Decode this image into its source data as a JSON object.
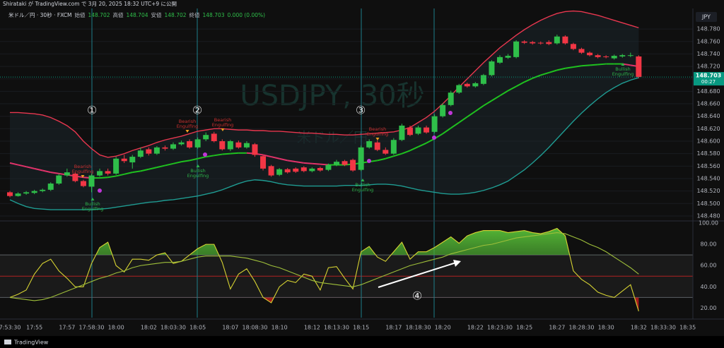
{
  "header": {
    "publisher": "Shirataki が TradingView.com で 3月 20, 2025 18:32 UTC+9 に公開",
    "footer": "TradingView"
  },
  "chart_data": [
    {
      "type": "candlestick",
      "title": "米ドル／円 · 30秒 · FXCM",
      "ohlc": [
        {
          "label": "始値",
          "value": 148.702
        },
        {
          "label": "高値",
          "value": 148.704
        },
        {
          "label": "安値",
          "value": 148.702
        },
        {
          "label": "終値",
          "value": 148.703
        }
      ],
      "change": "0.000 (0.00%)",
      "watermark": [
        "USDJPY, 30秒",
        "米ドル／円"
      ],
      "currency": "JPY",
      "last": {
        "value": 148.703,
        "countdown": "00:27"
      },
      "categories": [
        "7:53:30",
        null,
        null,
        "17:55",
        null,
        null,
        null,
        "17:57",
        null,
        null,
        "17:58:30",
        null,
        null,
        "18:00",
        null,
        null,
        null,
        "18:02",
        null,
        null,
        "18:03:30",
        null,
        null,
        "18:05",
        null,
        null,
        null,
        "18:07",
        null,
        null,
        "18:08:30",
        null,
        null,
        "18:10",
        null,
        null,
        null,
        "18:12",
        null,
        null,
        "18:13:30",
        null,
        null,
        "18:15",
        null,
        null,
        null,
        "18:17",
        null,
        null,
        "18:18:30",
        null,
        null,
        "18:20",
        null,
        null,
        null,
        "18:22",
        null,
        null,
        "18:23:30",
        null,
        null,
        "18:25",
        null,
        null,
        null,
        "18:27",
        null,
        null,
        "18:28:30",
        null,
        null,
        "18:30",
        null,
        null,
        null,
        "18:32",
        null,
        null,
        "18:33:30",
        null,
        null,
        "18:35"
      ],
      "open": [
        148.518,
        148.512,
        148.516,
        148.517,
        148.52,
        148.522,
        148.532,
        148.545,
        148.548,
        148.536,
        148.527,
        148.545,
        148.552,
        148.548,
        148.572,
        148.566,
        148.575,
        148.587,
        148.58,
        148.59,
        148.588,
        148.595,
        148.6,
        148.59,
        148.603,
        148.612,
        148.6,
        148.587,
        148.598,
        148.59,
        148.595,
        148.576,
        148.56,
        148.546,
        148.555,
        148.556,
        148.558,
        148.552,
        148.557,
        148.554,
        148.562,
        148.568,
        148.57,
        148.554,
        148.59,
        148.598,
        148.586,
        148.58,
        148.602,
        148.622,
        148.612,
        148.622,
        148.615,
        148.64,
        148.658,
        148.678,
        148.692,
        148.688,
        148.692,
        148.706,
        148.726,
        148.734,
        148.735,
        148.76,
        148.759,
        148.758,
        148.759,
        148.757,
        148.768,
        148.756,
        148.748,
        148.742,
        148.738,
        148.736,
        148.733,
        148.736,
        148.737,
        148.736,
        null,
        null,
        null,
        null,
        null,
        null
      ],
      "high": [
        148.52,
        148.518,
        148.52,
        148.522,
        148.524,
        148.534,
        148.548,
        148.556,
        148.55,
        148.538,
        148.548,
        148.556,
        148.556,
        148.575,
        148.578,
        148.578,
        148.59,
        148.59,
        148.592,
        148.593,
        148.598,
        148.601,
        148.603,
        148.606,
        148.614,
        148.615,
        148.603,
        148.602,
        148.601,
        148.6,
        148.597,
        148.578,
        148.562,
        148.557,
        148.557,
        148.558,
        148.56,
        148.558,
        148.559,
        148.564,
        148.57,
        148.57,
        148.572,
        148.593,
        148.603,
        148.601,
        148.59,
        148.605,
        148.628,
        148.625,
        148.625,
        148.625,
        148.643,
        148.661,
        148.681,
        148.692,
        148.694,
        148.695,
        148.708,
        148.73,
        148.738,
        148.74,
        148.762,
        148.762,
        148.761,
        148.76,
        148.762,
        148.771,
        148.77,
        148.758,
        148.75,
        148.744,
        148.74,
        148.738,
        148.739,
        148.74,
        148.742,
        148.738,
        null,
        null,
        null,
        null,
        null,
        null
      ],
      "low": [
        148.51,
        148.511,
        148.514,
        148.515,
        148.518,
        148.52,
        148.53,
        148.543,
        148.534,
        148.526,
        148.518,
        148.543,
        148.545,
        148.546,
        148.565,
        148.556,
        148.573,
        148.577,
        148.578,
        148.585,
        148.586,
        148.593,
        148.588,
        148.588,
        148.6,
        148.598,
        148.585,
        148.584,
        148.588,
        148.588,
        148.575,
        148.553,
        148.543,
        148.544,
        148.548,
        148.549,
        148.55,
        148.55,
        148.551,
        148.552,
        148.56,
        148.56,
        148.551,
        148.552,
        148.588,
        148.584,
        148.578,
        148.578,
        148.6,
        148.608,
        148.61,
        148.612,
        148.613,
        148.638,
        148.656,
        148.676,
        148.686,
        148.686,
        148.69,
        148.704,
        148.724,
        148.732,
        148.733,
        148.756,
        148.755,
        148.755,
        148.754,
        148.755,
        148.755,
        148.746,
        148.74,
        148.736,
        148.733,
        148.733,
        148.731,
        148.734,
        148.735,
        148.701,
        null,
        null,
        null,
        null,
        null,
        null
      ],
      "close": [
        148.512,
        148.516,
        148.518,
        148.52,
        148.522,
        148.532,
        148.545,
        148.55,
        148.536,
        148.528,
        148.545,
        148.552,
        148.548,
        148.572,
        148.568,
        148.575,
        148.585,
        148.58,
        148.59,
        148.588,
        148.595,
        148.598,
        148.59,
        148.603,
        148.61,
        148.6,
        148.587,
        148.6,
        148.59,
        148.597,
        148.578,
        148.556,
        148.545,
        148.555,
        148.55,
        148.551,
        148.552,
        148.556,
        148.553,
        148.562,
        148.567,
        148.562,
        148.553,
        148.59,
        148.6,
        148.586,
        148.58,
        148.602,
        148.625,
        148.61,
        148.622,
        148.614,
        148.64,
        148.658,
        148.678,
        148.69,
        148.688,
        148.693,
        148.706,
        148.728,
        148.735,
        148.737,
        148.76,
        148.758,
        148.757,
        148.757,
        148.756,
        148.768,
        148.757,
        148.748,
        148.742,
        148.738,
        148.735,
        148.735,
        148.737,
        148.738,
        148.738,
        148.703,
        null,
        null,
        null,
        null,
        null,
        null
      ],
      "up_color": "#2fbf4a",
      "down_color": "#f23645",
      "bands": {
        "upper": [
          148.646,
          148.646,
          148.645,
          148.644,
          148.642,
          148.638,
          148.632,
          148.625,
          148.615,
          148.6,
          148.588,
          148.578,
          148.574,
          148.576,
          148.58,
          148.585,
          148.589,
          148.593,
          148.598,
          148.602,
          148.605,
          148.608,
          148.612,
          148.616,
          148.618,
          148.62,
          148.62,
          148.619,
          148.618,
          148.618,
          148.617,
          148.617,
          148.616,
          148.616,
          148.615,
          148.614,
          148.613,
          148.613,
          148.612,
          148.611,
          148.611,
          148.61,
          148.61,
          148.611,
          148.612,
          148.613,
          148.614,
          148.615,
          148.618,
          148.622,
          148.63,
          148.638,
          148.648,
          148.66,
          148.673,
          148.687,
          148.7,
          148.713,
          148.726,
          148.738,
          148.75,
          148.76,
          148.77,
          148.779,
          148.787,
          148.794,
          148.8,
          148.805,
          148.808,
          148.809,
          148.808,
          148.805,
          148.802,
          148.798,
          148.794,
          148.79,
          148.786,
          148.782,
          null,
          null,
          null,
          null,
          null,
          null
        ],
        "middle": [
          148.565,
          148.562,
          148.559,
          148.556,
          148.553,
          148.55,
          148.548,
          148.546,
          148.544,
          148.542,
          148.541,
          148.541,
          148.542,
          148.544,
          148.547,
          148.55,
          148.552,
          148.555,
          148.558,
          148.561,
          148.564,
          148.567,
          148.569,
          148.572,
          148.575,
          148.577,
          148.579,
          148.58,
          148.581,
          148.581,
          148.58,
          148.578,
          148.575,
          148.572,
          148.569,
          148.567,
          148.565,
          148.564,
          148.563,
          148.562,
          148.562,
          148.562,
          148.563,
          148.565,
          148.567,
          148.569,
          148.572,
          148.576,
          148.58,
          148.585,
          148.591,
          148.597,
          148.604,
          148.612,
          148.621,
          148.63,
          148.639,
          148.648,
          148.657,
          148.665,
          148.673,
          148.681,
          148.688,
          148.695,
          148.701,
          148.706,
          148.71,
          148.714,
          148.717,
          148.719,
          148.721,
          148.722,
          148.723,
          148.724,
          148.724,
          148.724,
          148.722,
          148.72,
          null,
          null,
          null,
          null,
          null,
          null
        ],
        "lower": [
          148.506,
          148.5,
          148.495,
          148.492,
          148.491,
          148.49,
          148.49,
          148.49,
          148.49,
          148.49,
          148.49,
          148.491,
          148.492,
          148.494,
          148.496,
          148.498,
          148.5,
          148.502,
          148.503,
          148.505,
          148.506,
          148.508,
          148.51,
          148.512,
          148.515,
          148.518,
          148.522,
          148.527,
          148.532,
          148.536,
          148.538,
          148.537,
          148.535,
          148.532,
          148.53,
          148.529,
          148.528,
          148.528,
          148.528,
          148.528,
          148.528,
          148.529,
          148.529,
          148.529,
          148.53,
          148.531,
          148.531,
          148.53,
          148.528,
          148.525,
          148.522,
          148.52,
          148.518,
          148.516,
          148.515,
          148.515,
          148.516,
          148.518,
          148.521,
          148.525,
          148.53,
          148.536,
          148.545,
          148.554,
          148.565,
          148.577,
          148.59,
          148.604,
          148.618,
          148.632,
          148.645,
          148.657,
          148.668,
          148.678,
          148.686,
          148.693,
          148.698,
          148.702,
          null,
          null,
          null,
          null,
          null,
          null
        ],
        "upper_color": "#e8374f",
        "middle_color": "#1fc11f",
        "middle_down_color": "#e0336a",
        "lower_color": "#1f9c92"
      },
      "ylim": [
        148.472,
        148.813
      ],
      "yticks": [
        {
          "value": 148.48,
          "label": "148.480"
        },
        {
          "value": 148.5,
          "label": "148.500"
        },
        {
          "value": 148.52,
          "label": "148.520"
        },
        {
          "value": 148.54,
          "label": "148.540"
        },
        {
          "value": 148.56,
          "label": "148.560"
        },
        {
          "value": 148.58,
          "label": "148.580"
        },
        {
          "value": 148.6,
          "label": "148.600"
        },
        {
          "value": 148.62,
          "label": "148.620"
        },
        {
          "value": 148.64,
          "label": "148.640"
        },
        {
          "value": 148.66,
          "label": "148.660"
        },
        {
          "value": 148.68,
          "label": "148.680"
        },
        {
          "value": 148.7,
          "label": "148.700"
        },
        {
          "value": 148.72,
          "label": "148.720"
        },
        {
          "value": 148.74,
          "label": "148.740"
        },
        {
          "value": 148.76,
          "label": "148.760"
        },
        {
          "value": 148.78,
          "label": "148.780"
        }
      ],
      "annotations": [
        {
          "text": [
            "Bearish",
            "Engulfing"
          ]
        },
        {
          "text": [
            "Bullish",
            "Engulfing"
          ]
        },
        {
          "text": [
            "Bearish",
            "Engulfing"
          ]
        },
        {
          "text": [
            "Bullish",
            "Engulfing"
          ]
        },
        {
          "text": [
            "Bearish",
            "Engulfing"
          ]
        },
        {
          "text": [
            "Bearish",
            "Engulfing"
          ]
        },
        {
          "text": [
            "Bullish",
            "Engulfing"
          ]
        },
        {
          "text": [
            "Bullish",
            "Engulfing"
          ]
        }
      ],
      "markers": [
        "①",
        "②",
        "③",
        "④"
      ]
    },
    {
      "type": "line",
      "series": [
        {
          "color": "#d6d232",
          "values": [
            30,
            33,
            37,
            52,
            62,
            66,
            55,
            48,
            40,
            40,
            62,
            77,
            82,
            60,
            54,
            66,
            66,
            65,
            70,
            72,
            62,
            64,
            70,
            76,
            80,
            80,
            63,
            38,
            52,
            57,
            45,
            30,
            25,
            40,
            46,
            44,
            52,
            50,
            37,
            58,
            59,
            48,
            38,
            73,
            78,
            68,
            64,
            73,
            82,
            66,
            73,
            73,
            77,
            82,
            87,
            81,
            88,
            91,
            93,
            93,
            93,
            91,
            92,
            93,
            91,
            90,
            92,
            95,
            88,
            55,
            47,
            42,
            35,
            32,
            30,
            36,
            42,
            17,
            null,
            null,
            null,
            null,
            null,
            null
          ]
        },
        {
          "color": "#9fbf3a",
          "values": [
            30,
            29,
            28,
            27,
            28,
            30,
            33,
            36,
            39,
            42,
            45,
            48,
            50,
            53,
            55,
            58,
            60,
            61,
            62,
            63,
            63,
            64,
            66,
            68,
            69,
            69,
            69,
            69,
            68,
            67,
            65,
            63,
            60,
            58,
            55,
            52,
            49,
            46,
            44,
            43,
            42,
            41,
            40,
            42,
            45,
            48,
            51,
            54,
            57,
            60,
            62,
            64,
            66,
            68,
            71,
            73,
            75,
            77,
            79,
            80,
            82,
            84,
            86,
            87,
            88,
            89,
            90,
            91,
            90,
            87,
            84,
            80,
            77,
            73,
            68,
            63,
            58,
            52,
            null,
            null,
            null,
            null,
            null,
            null
          ]
        }
      ],
      "ylim": [
        11,
        102
      ],
      "yticks": [
        {
          "value": 100,
          "label": "100.00"
        },
        {
          "value": 80,
          "label": "80.00"
        },
        {
          "value": 60,
          "label": "60.00"
        },
        {
          "value": 40,
          "label": "40.00"
        },
        {
          "value": 20,
          "label": "20.00"
        }
      ],
      "levels": [
        70,
        50,
        30
      ],
      "level_colors": [
        "#5d6066",
        "#b22222",
        "#5d6066"
      ]
    }
  ]
}
